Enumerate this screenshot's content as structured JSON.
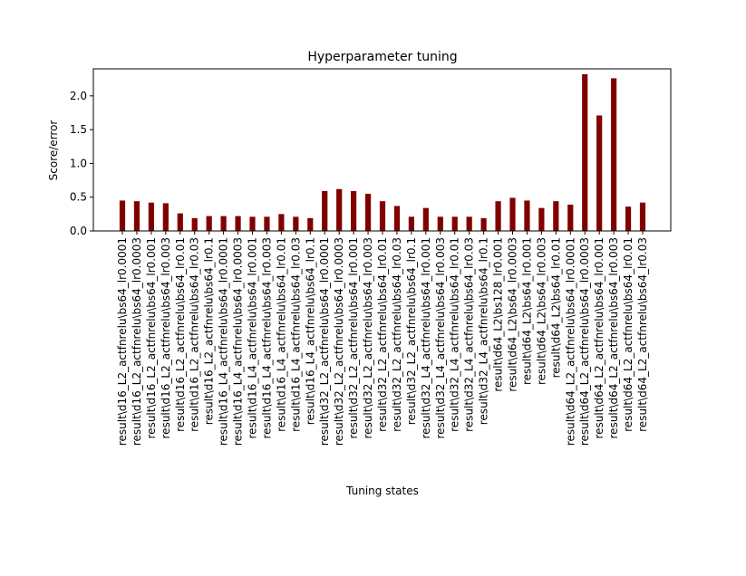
{
  "chart_data": {
    "type": "bar",
    "title": "Hyperparameter tuning",
    "xlabel": "Tuning states",
    "ylabel": "Score/error",
    "ylim": [
      0,
      2.4
    ],
    "yticks": [
      "0.0",
      "0.5",
      "1.0",
      "1.5",
      "2.0"
    ],
    "bar_color": "#800000",
    "grid": false,
    "categories": [
      "result\\d16_L2_actfnrelu\\bs64_lr0.0001",
      "result\\d16_L2_actfnrelu\\bs64_lr0.0003",
      "result\\d16_L2_actfnrelu\\bs64_lr0.001",
      "result\\d16_L2_actfnrelu\\bs64_lr0.003",
      "result\\d16_L2_actfnrelu\\bs64_lr0.01",
      "result\\d16_L2_actfnrelu\\bs64_lr0.03",
      "result\\d16_L2_actfnrelu\\bs64_lr0.1",
      "result\\d16_L4_actfnrelu\\bs64_lr0.0001",
      "result\\d16_L4_actfnrelu\\bs64_lr0.0003",
      "result\\d16_L4_actfnrelu\\bs64_lr0.001",
      "result\\d16_L4_actfnrelu\\bs64_lr0.003",
      "result\\d16_L4_actfnrelu\\bs64_lr0.01",
      "result\\d16_L4_actfnrelu\\bs64_lr0.03",
      "result\\d16_L4_actfnrelu\\bs64_lr0.1",
      "result\\d32_L2_actfnrelu\\bs64_lr0.0001",
      "result\\d32_L2_actfnrelu\\bs64_lr0.0003",
      "result\\d32_L2_actfnrelu\\bs64_lr0.001",
      "result\\d32_L2_actfnrelu\\bs64_lr0.003",
      "result\\d32_L2_actfnrelu\\bs64_lr0.01",
      "result\\d32_L2_actfnrelu\\bs64_lr0.03",
      "result\\d32_L2_actfnrelu\\bs64_lr0.1",
      "result\\d32_L4_actfnrelu\\bs64_lr0.001",
      "result\\d32_L4_actfnrelu\\bs64_lr0.003",
      "result\\d32_L4_actfnrelu\\bs64_lr0.01",
      "result\\d32_L4_actfnrelu\\bs64_lr0.03",
      "result\\d32_L4_actfnrelu\\bs64_lr0.1",
      "result\\d64_L2\\bs128_lr0.001",
      "result\\d64_L2\\bs64_lr0.0003",
      "result\\d64_L2\\bs64_lr0.001",
      "result\\d64_L2\\bs64_lr0.003",
      "result\\d64_L2\\bs64_lr0.01",
      "result\\d64_L2_actfnrelu\\bs64_lr0.0001",
      "result\\d64_L2_actfnrelu\\bs64_lr0.0003",
      "result\\d64_L2_actfnrelu\\bs64_lr0.001",
      "result\\d64_L2_actfnrelu\\bs64_lr0.003",
      "result\\d64_L2_actfnrelu\\bs64_lr0.01",
      "result\\d64_L2_actfnrelu\\bs64_lr0.03"
    ],
    "values": [
      0.45,
      0.44,
      0.42,
      0.41,
      0.26,
      0.19,
      0.22,
      0.22,
      0.22,
      0.21,
      0.21,
      0.25,
      0.21,
      0.19,
      0.59,
      0.62,
      0.59,
      0.55,
      0.44,
      0.37,
      0.21,
      0.34,
      0.21,
      0.21,
      0.21,
      0.19,
      0.44,
      0.49,
      0.45,
      0.34,
      0.44,
      0.39,
      2.32,
      1.71,
      2.26,
      0.36,
      0.42
    ]
  }
}
